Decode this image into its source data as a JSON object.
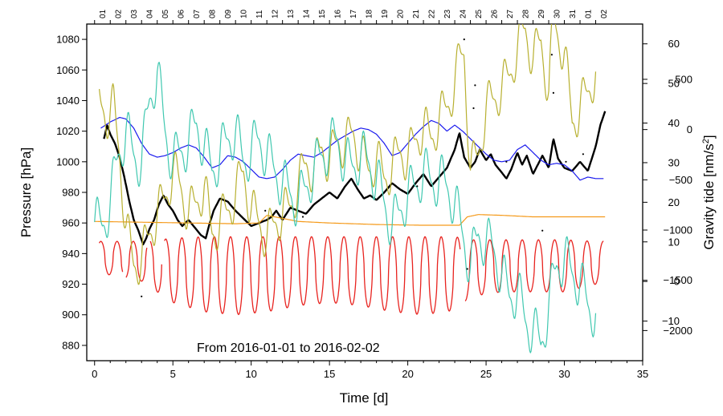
{
  "chart_data": {
    "type": "line",
    "x_range": [
      -0.5,
      35
    ],
    "xlabel": "Time [d]",
    "x_ticks": [
      0,
      5,
      10,
      15,
      20,
      25,
      30,
      35
    ],
    "x_tick_labels": [
      "0",
      "5",
      "10",
      "15",
      "20",
      "25",
      "30",
      "35"
    ],
    "top_day_labels": [
      "01",
      "02",
      "03",
      "04",
      "05",
      "06",
      "07",
      "08",
      "09",
      "10",
      "11",
      "12",
      "13",
      "14",
      "15",
      "16",
      "17",
      "18",
      "19",
      "20",
      "21",
      "22",
      "23",
      "24",
      "25",
      "26",
      "27",
      "28",
      "29",
      "30",
      "31",
      "01",
      "02"
    ],
    "y_left": {
      "label": "Pressure [hPa]",
      "range": [
        870,
        1090
      ],
      "ticks": [
        880,
        900,
        920,
        940,
        960,
        980,
        1000,
        1020,
        1040,
        1060,
        1080
      ],
      "tick_labels": [
        "880",
        "900",
        "920",
        "940",
        "960",
        "980",
        "1000",
        "1020",
        "1040",
        "1060",
        "1080"
      ]
    },
    "y_right_upper": {
      "label": "Gravity tide [nm/s",
      "label_sup": "2",
      "label_end": "]",
      "range": [
        -20,
        65
      ],
      "ticks": [
        -10,
        0,
        10,
        20,
        30,
        40,
        50,
        60
      ],
      "tick_labels": [
        "−10",
        "0",
        "10",
        "20",
        "30",
        "40",
        "50",
        "60"
      ]
    },
    "y_right_lower": {
      "range": [
        -2300,
        1050
      ],
      "ticks": [
        -2000,
        -1500,
        -1000,
        -500,
        0,
        500
      ],
      "tick_labels": [
        "−2000",
        "−1500",
        "−1000",
        "−500",
        "0",
        "500"
      ]
    },
    "annotation": "From 2016-01-01 to 2016-02-02",
    "series": [
      {
        "name": "pressure",
        "color": "#000000",
        "axis": "left",
        "x": [
          0.6,
          0.8,
          1.0,
          1.3,
          1.6,
          1.9,
          2.2,
          2.5,
          2.8,
          3.1,
          3.3,
          3.5,
          3.8,
          4.1,
          4.4,
          4.7,
          5.0,
          5.3,
          5.6,
          6.0,
          6.4,
          6.8,
          7.1,
          7.3,
          7.6,
          8.0,
          8.5,
          9.0,
          9.5,
          10.0,
          10.5,
          11.0,
          11.3,
          11.6,
          12.0,
          12.5,
          13.0,
          13.5,
          14.0,
          14.5,
          15.0,
          15.5,
          16.0,
          16.4,
          16.8,
          17.2,
          17.6,
          18.0,
          18.5,
          19.0,
          19.5,
          20.0,
          20.5,
          21.0,
          21.5,
          22.0,
          22.5,
          23.0,
          23.3,
          23.6,
          24.0,
          24.3,
          24.6,
          25.0,
          25.3,
          25.6,
          26.0,
          26.3,
          26.6,
          27.0,
          27.3,
          27.6,
          28.0,
          28.3,
          28.6,
          29.0,
          29.3,
          29.6,
          30.0,
          30.5,
          31.0,
          31.5,
          32.0,
          32.3,
          32.6
        ],
        "y": [
          1015,
          1024,
          1018,
          1012,
          1003,
          990,
          975,
          962,
          955,
          946,
          950,
          956,
          962,
          972,
          978,
          972,
          968,
          962,
          958,
          962,
          957,
          952,
          950,
          958,
          968,
          976,
          974,
          968,
          963,
          958,
          960,
          962,
          964,
          968,
          962,
          970,
          968,
          966,
          972,
          976,
          980,
          976,
          984,
          989,
          982,
          976,
          978,
          975,
          980,
          986,
          982,
          979,
          986,
          992,
          984,
          990,
          996,
          1008,
          1019,
          1003,
          996,
          1000,
          1008,
          1001,
          1005,
          998,
          993,
          989,
          995,
          1006,
          998,
          1004,
          992,
          998,
          1004,
          996,
          1015,
          1002,
          996,
          994,
          1000,
          994,
          1010,
          1024,
          1033
        ]
      },
      {
        "name": "blue",
        "color": "#1a1aee",
        "axis": "left",
        "x": [
          0.4,
          1.0,
          1.6,
          2.0,
          2.5,
          3.0,
          3.5,
          4.0,
          4.5,
          5.0,
          5.5,
          6.0,
          6.5,
          7.0,
          7.5,
          8.0,
          8.5,
          9.0,
          9.5,
          10.0,
          10.5,
          11.0,
          11.5,
          12.0,
          12.5,
          13.0,
          13.5,
          14.0,
          14.5,
          15.0,
          15.5,
          16.0,
          16.5,
          17.0,
          17.5,
          18.0,
          18.5,
          19.0,
          19.5,
          20.0,
          20.5,
          21.0,
          21.5,
          22.0,
          22.5,
          23.0,
          23.5,
          24.0,
          24.5,
          25.0,
          25.5,
          26.0,
          26.5,
          27.0,
          27.5,
          28.0,
          28.5,
          29.0,
          29.5,
          30.0,
          30.5,
          31.0,
          31.5,
          32.0,
          32.5
        ],
        "y": [
          1022,
          1026,
          1029,
          1028,
          1022,
          1012,
          1005,
          1003,
          1004,
          1006,
          1009,
          1011,
          1009,
          1003,
          996,
          998,
          1004,
          1003,
          1000,
          995,
          990,
          989,
          990,
          995,
          1001,
          1005,
          1004,
          1003,
          1006,
          1010,
          1014,
          1017,
          1020,
          1022,
          1021,
          1018,
          1012,
          1004,
          1006,
          1012,
          1018,
          1023,
          1027,
          1025,
          1020,
          1024,
          1020,
          1015,
          1010,
          1005,
          1001,
          1000,
          1001,
          1008,
          1011,
          1006,
          1001,
          998,
          999,
          998,
          994,
          988,
          990,
          989,
          989
        ]
      },
      {
        "name": "orange",
        "color": "#f59a1a",
        "axis": "left",
        "x": [
          0.0,
          3.0,
          6.0,
          9.0,
          10.5,
          11.0,
          12.0,
          13.0,
          15.0,
          18.0,
          21.0,
          23.3,
          23.8,
          24.5,
          26.0,
          28.0,
          30.0,
          32.0,
          32.6
        ],
        "y": [
          961,
          960.5,
          960,
          959.5,
          960,
          965,
          963,
          961,
          960,
          959,
          958.5,
          958.5,
          964,
          965.5,
          965,
          964,
          964,
          964,
          964
        ]
      },
      {
        "name": "red",
        "color": "#e8231f",
        "axis": "left",
        "period": 1.035,
        "phase_days": [
          0.4
        ],
        "envelope_x": [
          0.0,
          3.0,
          5.0,
          7.0,
          9.0,
          11.0,
          13.0,
          15.0,
          17.0,
          19.0,
          21.0,
          23.0,
          24.0,
          26.0,
          28.0,
          30.0,
          32.0,
          33.0
        ],
        "envelope_max": [
          948,
          948,
          950,
          951,
          951,
          951,
          951,
          951,
          951,
          951,
          951,
          951,
          949,
          949,
          949,
          949,
          948,
          948
        ],
        "envelope_min": [
          928,
          922,
          908,
          902,
          900,
          902,
          906,
          908,
          906,
          902,
          900,
          903,
          912,
          915,
          915,
          915,
          920,
          920
        ]
      },
      {
        "name": "yellow-green",
        "color": "#b8b030",
        "axis": "right_upper",
        "x": [
          0.3,
          0.8,
          1.2,
          1.6,
          2.0,
          2.5,
          3.0,
          3.5,
          4.0,
          4.5,
          5.0,
          5.5,
          6.0,
          6.5,
          7.0,
          7.5,
          8.0,
          8.5,
          9.0,
          9.5,
          10.0,
          10.5,
          11.0,
          11.5,
          12.0,
          12.5,
          13.0,
          13.5,
          14.0,
          14.5,
          15.0,
          15.5,
          16.0,
          16.5,
          17.0,
          17.5,
          18.0,
          18.5,
          19.0,
          19.5,
          20.0,
          20.5,
          21.0,
          21.5,
          22.0,
          22.5,
          23.0,
          23.3,
          23.6,
          24.0,
          24.5,
          25.0,
          25.5,
          26.0,
          26.5,
          27.0,
          27.5,
          28.0,
          28.5,
          29.0,
          29.3,
          29.6,
          30.0,
          30.5,
          31.0,
          31.5,
          32.0
        ],
        "y": [
          45,
          42,
          44,
          32,
          14,
          4,
          6,
          12,
          17,
          21,
          28,
          24,
          17,
          20,
          24,
          12,
          15,
          18,
          22,
          28,
          18,
          15,
          11,
          15,
          17,
          19,
          24,
          30,
          28,
          34,
          30,
          36,
          34,
          38,
          32,
          28,
          31,
          26,
          29,
          33,
          31,
          36,
          39,
          36,
          41,
          44,
          50,
          56,
          58,
          28,
          32,
          44,
          46,
          49,
          52,
          59,
          64,
          56,
          61,
          48,
          66,
          62,
          58,
          40,
          44,
          48,
          53
        ]
      },
      {
        "name": "teal",
        "color": "#40c8b0",
        "axis": "right_upper",
        "x": [
          0.0,
          0.5,
          1.0,
          1.5,
          2.0,
          2.5,
          3.0,
          3.5,
          4.0,
          4.5,
          5.0,
          5.5,
          6.0,
          6.5,
          7.0,
          7.5,
          8.0,
          8.5,
          9.0,
          9.5,
          10.0,
          10.5,
          11.0,
          11.5,
          12.0,
          12.5,
          13.0,
          13.5,
          14.0,
          14.5,
          15.0,
          15.5,
          16.0,
          16.5,
          17.0,
          17.5,
          18.0,
          18.5,
          19.0,
          19.5,
          20.0,
          20.5,
          21.0,
          21.5,
          22.0,
          22.5,
          23.0,
          23.5,
          24.0,
          24.5,
          25.0,
          25.5,
          26.0,
          26.5,
          27.0,
          27.5,
          28.0,
          28.5,
          29.0,
          29.5,
          30.0,
          30.5,
          31.0,
          31.5,
          32.0
        ],
        "y": [
          15,
          14,
          20,
          32,
          38,
          32,
          30,
          46,
          53,
          38,
          30,
          33,
          35,
          40,
          34,
          28,
          32,
          36,
          38,
          30,
          33,
          36,
          32,
          28,
          25,
          22,
          20,
          24,
          28,
          32,
          34,
          36,
          30,
          29,
          32,
          30,
          26,
          20,
          14,
          18,
          22,
          24,
          28,
          25,
          26,
          24,
          20,
          12,
          4,
          12,
          10,
          8,
          2,
          -4,
          -2,
          -10,
          -12,
          -16,
          -6,
          4,
          6,
          2,
          0,
          -6,
          -8
        ]
      }
    ]
  }
}
